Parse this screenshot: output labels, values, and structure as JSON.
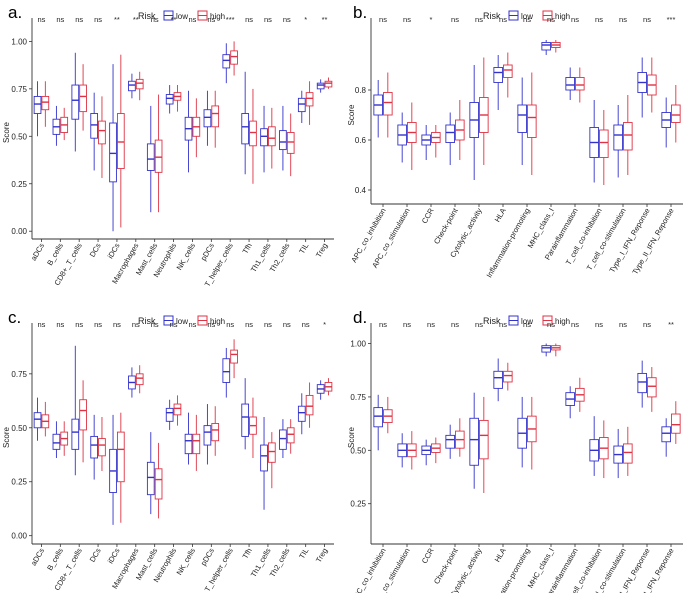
{
  "figure": {
    "legend_title": "Risk",
    "colors": {
      "low": "#3333cc",
      "high": "#dd3344",
      "axis": "#333333",
      "text": "#222222"
    }
  },
  "chart_data": [
    {
      "panel_label": "a.",
      "type": "boxplot",
      "ylabel": "Score",
      "ylim": [
        -0.02,
        1.06
      ],
      "yticks": [
        0.0,
        0.25,
        0.5,
        0.75,
        1.0
      ],
      "ytick_labels": [
        "0.00",
        "0.25",
        "0.50",
        "0.75",
        "1.00"
      ],
      "legend": {
        "title": "Risk",
        "entries": [
          "low",
          "high"
        ],
        "position": "top-center"
      },
      "categories": [
        "aDCs",
        "B_cells",
        "CD8+_T_cells",
        "DCs",
        "iDCs",
        "Macrophages",
        "Mast_cells",
        "Neutrophils",
        "NK_cells",
        "pDCs",
        "T_helper_cells",
        "Tfh",
        "Th1_cells",
        "Th2_cells",
        "TIL",
        "Treg"
      ],
      "significance": [
        "ns",
        "ns",
        "ns",
        "ns",
        "**",
        "**",
        "ns",
        "**",
        "ns",
        "ns",
        "***",
        "ns",
        "ns",
        "ns",
        "*",
        "**"
      ],
      "series": [
        {
          "name": "low",
          "boxes": [
            [
              0.5,
              0.62,
              0.67,
              0.71,
              0.79
            ],
            [
              0.45,
              0.51,
              0.55,
              0.59,
              0.66
            ],
            [
              0.42,
              0.59,
              0.69,
              0.77,
              0.94
            ],
            [
              0.32,
              0.49,
              0.56,
              0.62,
              0.73
            ],
            [
              0.0,
              0.26,
              0.41,
              0.57,
              0.88
            ],
            [
              0.7,
              0.74,
              0.77,
              0.79,
              0.83
            ],
            [
              0.1,
              0.32,
              0.38,
              0.46,
              0.66
            ],
            [
              0.62,
              0.67,
              0.7,
              0.72,
              0.77
            ],
            [
              0.31,
              0.48,
              0.54,
              0.6,
              0.74
            ],
            [
              0.45,
              0.55,
              0.6,
              0.64,
              0.74
            ],
            [
              0.78,
              0.86,
              0.9,
              0.93,
              0.99
            ],
            [
              0.3,
              0.46,
              0.55,
              0.62,
              0.84
            ],
            [
              0.31,
              0.45,
              0.5,
              0.54,
              0.66
            ],
            [
              0.32,
              0.43,
              0.47,
              0.53,
              0.66
            ],
            [
              0.57,
              0.63,
              0.67,
              0.7,
              0.74
            ],
            [
              0.73,
              0.75,
              0.77,
              0.78,
              0.8
            ]
          ]
        },
        {
          "name": "high",
          "boxes": [
            [
              0.55,
              0.64,
              0.68,
              0.71,
              0.79
            ],
            [
              0.48,
              0.52,
              0.56,
              0.6,
              0.65
            ],
            [
              0.53,
              0.63,
              0.71,
              0.77,
              0.88
            ],
            [
              0.28,
              0.46,
              0.53,
              0.58,
              0.71
            ],
            [
              0.02,
              0.33,
              0.47,
              0.62,
              0.93
            ],
            [
              0.69,
              0.75,
              0.78,
              0.8,
              0.84
            ],
            [
              0.1,
              0.31,
              0.39,
              0.48,
              0.72
            ],
            [
              0.63,
              0.69,
              0.71,
              0.73,
              0.77
            ],
            [
              0.39,
              0.5,
              0.55,
              0.6,
              0.7
            ],
            [
              0.44,
              0.55,
              0.62,
              0.66,
              0.74
            ],
            [
              0.82,
              0.88,
              0.92,
              0.95,
              1.0
            ],
            [
              0.25,
              0.45,
              0.52,
              0.58,
              0.75
            ],
            [
              0.33,
              0.45,
              0.49,
              0.55,
              0.65
            ],
            [
              0.29,
              0.41,
              0.47,
              0.52,
              0.62
            ],
            [
              0.56,
              0.66,
              0.7,
              0.73,
              0.79
            ],
            [
              0.75,
              0.76,
              0.78,
              0.79,
              0.81
            ]
          ]
        }
      ]
    },
    {
      "panel_label": "b.",
      "type": "boxplot",
      "ylabel": "Score",
      "ylim": [
        0.36,
        1.04
      ],
      "yticks": [
        0.4,
        0.6,
        0.8
      ],
      "ytick_labels": [
        "0.4",
        "0.6",
        "0.8"
      ],
      "legend": {
        "title": "Risk",
        "entries": [
          "low",
          "high"
        ],
        "position": "top-center"
      },
      "categories": [
        "APC_co_inhibition",
        "APC_co_stimulation",
        "CCR",
        "Check-point",
        "Cytolytic_activity",
        "HLA",
        "Inflammation-promoting",
        "MHC_class_I",
        "Parainflammation",
        "T_cell_co-inhibition",
        "T_cell_co-stimulation",
        "Type_I_IFN_Reponse",
        "Type_II_IFN_Reponse"
      ],
      "significance": [
        "ns",
        "ns",
        "*",
        "ns",
        "ns",
        "ns",
        "ns",
        "ns",
        "ns",
        "ns",
        "ns",
        "ns",
        "***"
      ],
      "series": [
        {
          "name": "low",
          "boxes": [
            [
              0.61,
              0.7,
              0.74,
              0.78,
              0.84
            ],
            [
              0.51,
              0.58,
              0.62,
              0.66,
              0.71
            ],
            [
              0.52,
              0.58,
              0.6,
              0.62,
              0.66
            ],
            [
              0.5,
              0.59,
              0.63,
              0.66,
              0.71
            ],
            [
              0.44,
              0.61,
              0.68,
              0.75,
              0.9
            ],
            [
              0.72,
              0.83,
              0.87,
              0.89,
              0.94
            ],
            [
              0.5,
              0.63,
              0.7,
              0.74,
              0.85
            ],
            [
              0.94,
              0.96,
              0.98,
              0.99,
              1.0
            ],
            [
              0.76,
              0.8,
              0.82,
              0.85,
              0.89
            ],
            [
              0.43,
              0.53,
              0.59,
              0.65,
              0.76
            ],
            [
              0.45,
              0.56,
              0.62,
              0.66,
              0.74
            ],
            [
              0.69,
              0.79,
              0.83,
              0.87,
              0.93
            ],
            [
              0.57,
              0.65,
              0.68,
              0.71,
              0.77
            ]
          ]
        },
        {
          "name": "high",
          "boxes": [
            [
              0.61,
              0.7,
              0.75,
              0.79,
              0.87
            ],
            [
              0.48,
              0.59,
              0.63,
              0.67,
              0.75
            ],
            [
              0.53,
              0.59,
              0.61,
              0.63,
              0.66
            ],
            [
              0.52,
              0.6,
              0.64,
              0.68,
              0.76
            ],
            [
              0.5,
              0.63,
              0.7,
              0.77,
              0.93
            ],
            [
              0.77,
              0.85,
              0.88,
              0.9,
              0.95
            ],
            [
              0.46,
              0.61,
              0.69,
              0.74,
              0.87
            ],
            [
              0.95,
              0.97,
              0.98,
              0.99,
              1.0
            ],
            [
              0.75,
              0.8,
              0.82,
              0.85,
              0.89
            ],
            [
              0.42,
              0.53,
              0.59,
              0.64,
              0.72
            ],
            [
              0.46,
              0.56,
              0.62,
              0.67,
              0.78
            ],
            [
              0.71,
              0.78,
              0.82,
              0.86,
              0.93
            ],
            [
              0.59,
              0.67,
              0.7,
              0.74,
              0.82
            ]
          ]
        }
      ]
    },
    {
      "panel_label": "c.",
      "type": "boxplot",
      "ylabel": "Score",
      "ylim": [
        -0.02,
        0.93
      ],
      "yticks": [
        0.0,
        0.25,
        0.5,
        0.75
      ],
      "ytick_labels": [
        "0.00",
        "0.25",
        "0.50",
        "0.75"
      ],
      "legend": {
        "title": "Risk",
        "entries": [
          "low",
          "high"
        ],
        "position": "top-center"
      },
      "categories": [
        "aDCs",
        "B_cells",
        "CD8+_T_cells",
        "DCs",
        "iDCs",
        "Macrophages",
        "Mast_cells",
        "Neutrophils",
        "NK_cells",
        "pDCs",
        "T_helper_cells",
        "Tfh",
        "Th1_cells",
        "Th2_cells",
        "TIL",
        "Treg"
      ],
      "significance": [
        "ns",
        "ns",
        "ns",
        "ns",
        "ns",
        "ns",
        "ns",
        "ns",
        "ns",
        "ns",
        "ns",
        "ns",
        "ns",
        "ns",
        "ns",
        "*"
      ],
      "series": [
        {
          "name": "low",
          "boxes": [
            [
              0.44,
              0.5,
              0.54,
              0.57,
              0.64
            ],
            [
              0.36,
              0.4,
              0.43,
              0.47,
              0.53
            ],
            [
              0.28,
              0.4,
              0.48,
              0.54,
              0.88
            ],
            [
              0.26,
              0.36,
              0.42,
              0.46,
              0.56
            ],
            [
              0.05,
              0.2,
              0.3,
              0.4,
              0.56
            ],
            [
              0.64,
              0.68,
              0.71,
              0.74,
              0.78
            ],
            [
              0.1,
              0.19,
              0.27,
              0.34,
              0.48
            ],
            [
              0.49,
              0.53,
              0.57,
              0.59,
              0.63
            ],
            [
              0.33,
              0.38,
              0.44,
              0.47,
              0.57
            ],
            [
              0.33,
              0.42,
              0.48,
              0.51,
              0.61
            ],
            [
              0.64,
              0.71,
              0.76,
              0.82,
              0.87
            ],
            [
              0.4,
              0.46,
              0.55,
              0.61,
              0.73
            ],
            [
              0.12,
              0.3,
              0.37,
              0.42,
              0.55
            ],
            [
              0.36,
              0.4,
              0.45,
              0.49,
              0.54
            ],
            [
              0.47,
              0.53,
              0.57,
              0.6,
              0.66
            ],
            [
              0.63,
              0.66,
              0.68,
              0.7,
              0.72
            ]
          ]
        },
        {
          "name": "high",
          "boxes": [
            [
              0.46,
              0.5,
              0.53,
              0.56,
              0.62
            ],
            [
              0.37,
              0.42,
              0.45,
              0.48,
              0.53
            ],
            [
              0.34,
              0.49,
              0.58,
              0.63,
              0.72
            ],
            [
              0.3,
              0.37,
              0.42,
              0.45,
              0.55
            ],
            [
              0.06,
              0.25,
              0.4,
              0.48,
              0.57
            ],
            [
              0.66,
              0.7,
              0.73,
              0.75,
              0.79
            ],
            [
              0.08,
              0.17,
              0.26,
              0.31,
              0.43
            ],
            [
              0.51,
              0.56,
              0.59,
              0.61,
              0.65
            ],
            [
              0.3,
              0.38,
              0.44,
              0.47,
              0.56
            ],
            [
              0.37,
              0.44,
              0.49,
              0.52,
              0.6
            ],
            [
              0.73,
              0.8,
              0.84,
              0.86,
              0.91
            ],
            [
              0.36,
              0.47,
              0.51,
              0.55,
              0.64
            ],
            [
              0.22,
              0.34,
              0.39,
              0.43,
              0.48
            ],
            [
              0.38,
              0.43,
              0.47,
              0.5,
              0.54
            ],
            [
              0.5,
              0.56,
              0.6,
              0.65,
              0.71
            ],
            [
              0.65,
              0.67,
              0.69,
              0.71,
              0.73
            ]
          ]
        }
      ]
    },
    {
      "panel_label": "d.",
      "type": "boxplot",
      "ylabel": "Score",
      "ylim": [
        0.08,
        1.04
      ],
      "yticks": [
        0.25,
        0.5,
        0.75,
        1.0
      ],
      "ytick_labels": [
        "0.25",
        "0.50",
        "0.75",
        "1.00"
      ],
      "legend": {
        "title": "Risk",
        "entries": [
          "low",
          "high"
        ],
        "position": "top-center"
      },
      "categories": [
        "APC_co_inhibition",
        "APC_co_stimulation",
        "CCR",
        "Check-point",
        "Cytolytic_activity",
        "HLA",
        "Inflammation-promoting",
        "MHC_class_I",
        "Parainflammation",
        "T_cell_co-inhibition",
        "T_cell_co-stimulation",
        "Type_I_IFN_Reponse",
        "Type_II_IFN_Reponse"
      ],
      "significance": [
        "ns",
        "ns",
        "ns",
        "ns",
        "ns",
        "ns",
        "ns",
        "ns",
        "ns",
        "ns",
        "ns",
        "ns",
        "**"
      ],
      "series": [
        {
          "name": "low",
          "boxes": [
            [
              0.5,
              0.61,
              0.66,
              0.7,
              0.76
            ],
            [
              0.42,
              0.47,
              0.5,
              0.53,
              0.58
            ],
            [
              0.43,
              0.48,
              0.5,
              0.52,
              0.55
            ],
            [
              0.46,
              0.51,
              0.55,
              0.57,
              0.62
            ],
            [
              0.32,
              0.43,
              0.55,
              0.65,
              0.77
            ],
            [
              0.73,
              0.79,
              0.84,
              0.87,
              0.93
            ],
            [
              0.42,
              0.51,
              0.58,
              0.65,
              0.75
            ],
            [
              0.94,
              0.96,
              0.98,
              0.99,
              1.0
            ],
            [
              0.65,
              0.71,
              0.74,
              0.77,
              0.8
            ],
            [
              0.38,
              0.45,
              0.5,
              0.55,
              0.66
            ],
            [
              0.37,
              0.44,
              0.48,
              0.52,
              0.6
            ],
            [
              0.7,
              0.77,
              0.82,
              0.86,
              0.92
            ],
            [
              0.47,
              0.54,
              0.58,
              0.61,
              0.65
            ]
          ]
        },
        {
          "name": "high",
          "boxes": [
            [
              0.58,
              0.63,
              0.66,
              0.69,
              0.75
            ],
            [
              0.41,
              0.47,
              0.5,
              0.53,
              0.59
            ],
            [
              0.44,
              0.49,
              0.51,
              0.53,
              0.56
            ],
            [
              0.47,
              0.51,
              0.55,
              0.59,
              0.65
            ],
            [
              0.3,
              0.46,
              0.57,
              0.64,
              0.75
            ],
            [
              0.78,
              0.82,
              0.85,
              0.87,
              0.91
            ],
            [
              0.41,
              0.54,
              0.6,
              0.66,
              0.75
            ],
            [
              0.94,
              0.97,
              0.98,
              0.99,
              1.0
            ],
            [
              0.68,
              0.73,
              0.76,
              0.79,
              0.84
            ],
            [
              0.37,
              0.46,
              0.51,
              0.56,
              0.64
            ],
            [
              0.38,
              0.44,
              0.49,
              0.53,
              0.61
            ],
            [
              0.68,
              0.75,
              0.8,
              0.84,
              0.89
            ],
            [
              0.53,
              0.58,
              0.62,
              0.67,
              0.73
            ]
          ]
        }
      ]
    }
  ]
}
